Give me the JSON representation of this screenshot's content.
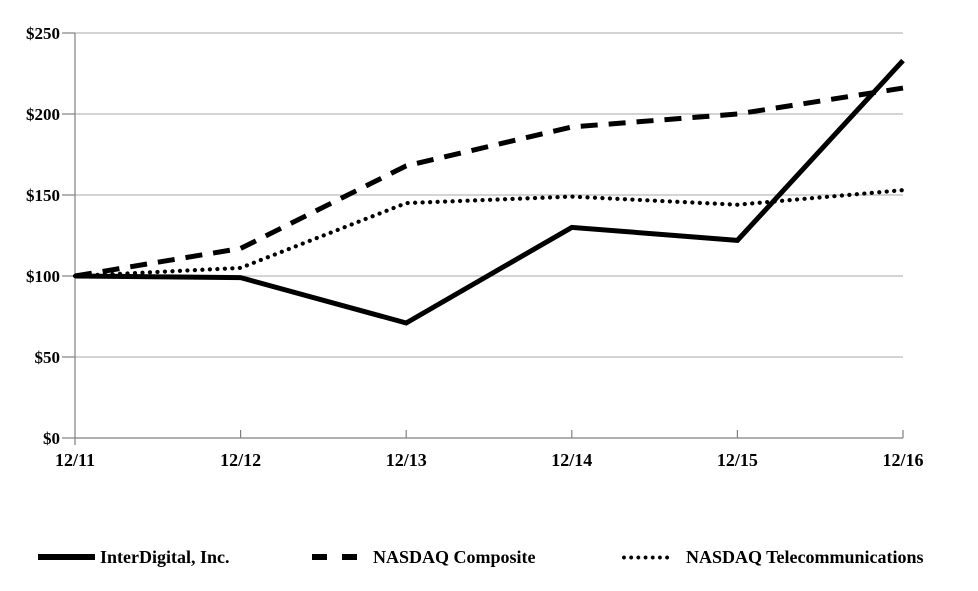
{
  "chart_data": {
    "type": "line",
    "title": "",
    "xlabel": "",
    "ylabel": "",
    "categories": [
      "12/11",
      "12/12",
      "12/13",
      "12/14",
      "12/15",
      "12/16"
    ],
    "series": [
      {
        "name": "InterDigital, Inc.",
        "line_style": "solid",
        "values": [
          100,
          99,
          71,
          130,
          122,
          233
        ]
      },
      {
        "name": "NASDAQ Composite",
        "line_style": "dashed",
        "values": [
          100,
          117,
          168,
          192,
          200,
          216
        ]
      },
      {
        "name": "NASDAQ Telecommunications",
        "line_style": "dotted",
        "values": [
          100,
          105,
          145,
          149,
          144,
          153
        ]
      }
    ],
    "ylim": [
      0,
      250
    ],
    "y_ticks": [
      {
        "value": 0,
        "label": "$0"
      },
      {
        "value": 50,
        "label": "$50"
      },
      {
        "value": 100,
        "label": "$100"
      },
      {
        "value": 150,
        "label": "$150"
      },
      {
        "value": 200,
        "label": "$200"
      },
      {
        "value": 250,
        "label": "$250"
      }
    ],
    "grid": true,
    "legend_position": "bottom",
    "colors": {
      "series": "#000000",
      "grid": "#a8a8a8",
      "axis": "#808080",
      "background": "#ffffff"
    }
  }
}
